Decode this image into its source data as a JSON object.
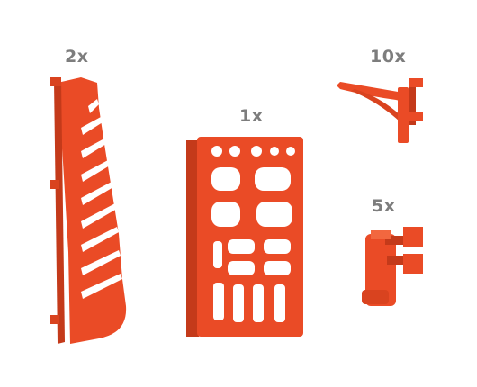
{
  "labels": {
    "rail_qty": "2x",
    "panel_qty": "1x",
    "hook_qty": "10x",
    "clip_qty": "5x"
  },
  "colors": {
    "part": "#ea4b26",
    "part_dark": "#c43a1a",
    "part_light": "#f2673f",
    "label": "#7d7d7d",
    "background": "#ffffff"
  }
}
